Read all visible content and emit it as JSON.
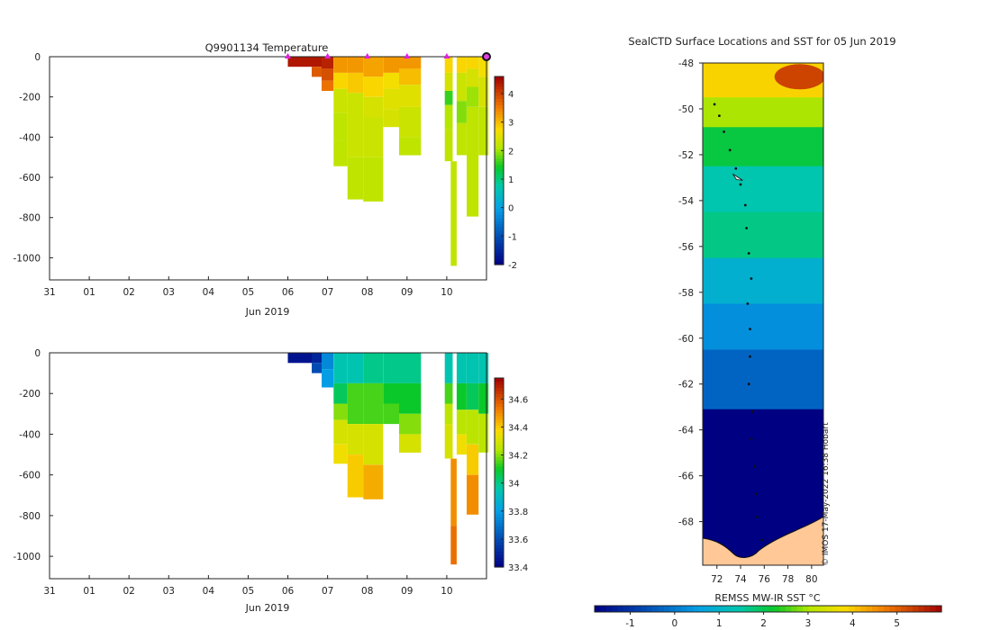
{
  "chart_data": [
    {
      "type": "heatmap",
      "title": "Q9901134  Temperature",
      "xlabel": "Jun 2019",
      "ylabel": "",
      "xticks": [
        "31",
        "01",
        "02",
        "03",
        "04",
        "05",
        "06",
        "07",
        "08",
        "09",
        "10"
      ],
      "yticks": [
        "0",
        "-200",
        "-400",
        "-600",
        "-800",
        "-1000"
      ],
      "ylim": [
        -1110,
        0
      ],
      "colorbar": {
        "min": -2,
        "max": 4.6,
        "ticks": [
          "-2",
          "-1",
          "0",
          "1",
          "2",
          "3",
          "4"
        ]
      },
      "profile_markers_day": [
        5,
        6,
        7,
        8,
        9,
        10
      ],
      "current_position_day": 10,
      "profiles": [
        {
          "x0": 5.0,
          "x1": 5.6,
          "bins": [
            [
              0,
              -50,
              4.4
            ]
          ]
        },
        {
          "x0": 5.6,
          "x1": 5.85,
          "bins": [
            [
              0,
              -50,
              4.4
            ],
            [
              -50,
              -100,
              3.8
            ]
          ]
        },
        {
          "x0": 5.85,
          "x1": 6.15,
          "bins": [
            [
              0,
              -60,
              4.3
            ],
            [
              -60,
              -120,
              3.9
            ],
            [
              -120,
              -170,
              3.6
            ]
          ]
        },
        {
          "x0": 6.15,
          "x1": 6.5,
          "bins": [
            [
              0,
              -80,
              3.3
            ],
            [
              -80,
              -160,
              2.8
            ],
            [
              -160,
              -280,
              2.3
            ],
            [
              -280,
              -420,
              2.2
            ],
            [
              -420,
              -545,
              2.2
            ]
          ]
        },
        {
          "x0": 6.5,
          "x1": 6.9,
          "bins": [
            [
              0,
              -80,
              3.3
            ],
            [
              -80,
              -180,
              2.9
            ],
            [
              -180,
              -300,
              2.3
            ],
            [
              -300,
              -500,
              2.3
            ],
            [
              -500,
              -710,
              2.2
            ]
          ]
        },
        {
          "x0": 6.9,
          "x1": 7.4,
          "bins": [
            [
              0,
              -100,
              3.2
            ],
            [
              -100,
              -200,
              2.8
            ],
            [
              -200,
              -300,
              2.4
            ],
            [
              -300,
              -500,
              2.3
            ],
            [
              -500,
              -720,
              2.2
            ]
          ]
        },
        {
          "x0": 7.4,
          "x1": 7.8,
          "bins": [
            [
              0,
              -80,
              3.3
            ],
            [
              -80,
              -160,
              2.7
            ],
            [
              -160,
              -260,
              2.5
            ],
            [
              -260,
              -350,
              2.4
            ]
          ]
        },
        {
          "x0": 7.8,
          "x1": 8.35,
          "bins": [
            [
              0,
              -60,
              3.3
            ],
            [
              -60,
              -140,
              3.0
            ],
            [
              -140,
              -250,
              2.5
            ],
            [
              -250,
              -400,
              2.3
            ],
            [
              -400,
              -490,
              2.2
            ]
          ]
        },
        {
          "x0": 8.95,
          "x1": 9.15,
          "bins": [
            [
              0,
              -80,
              2.8
            ],
            [
              -80,
              -170,
              2.4
            ],
            [
              -170,
              -240,
              1.6
            ],
            [
              -240,
              -360,
              2.1
            ],
            [
              -360,
              -520,
              2.2
            ]
          ]
        },
        {
          "x0": 9.1,
          "x1": 9.25,
          "bins": [
            [
              -520,
              -1040,
              2.2
            ]
          ]
        },
        {
          "x0": 9.25,
          "x1": 9.5,
          "bins": [
            [
              0,
              -80,
              2.8
            ],
            [
              -80,
              -220,
              2.3
            ],
            [
              -220,
              -330,
              1.9
            ],
            [
              -330,
              -490,
              2.2
            ]
          ]
        },
        {
          "x0": 9.5,
          "x1": 9.8,
          "bins": [
            [
              0,
              -60,
              2.8
            ],
            [
              -60,
              -150,
              2.4
            ],
            [
              -150,
              -250,
              2.0
            ],
            [
              -250,
              -490,
              2.2
            ],
            [
              -490,
              -795,
              2.2
            ]
          ]
        },
        {
          "x0": 9.8,
          "x1": 10.05,
          "bins": [
            [
              0,
              -100,
              2.7
            ],
            [
              -100,
              -250,
              2.4
            ],
            [
              -250,
              -490,
              2.2
            ]
          ]
        }
      ]
    },
    {
      "type": "heatmap",
      "title": "",
      "xlabel": "Jun 2019",
      "ylabel": "",
      "xticks": [
        "31",
        "01",
        "02",
        "03",
        "04",
        "05",
        "06",
        "07",
        "08",
        "09",
        "10"
      ],
      "yticks": [
        "0",
        "-200",
        "-400",
        "-600",
        "-800",
        "-1000"
      ],
      "ylim": [
        -1110,
        0
      ],
      "colorbar": {
        "min": 33.4,
        "max": 34.75,
        "ticks": [
          "33.4",
          "33.6",
          "33.8",
          "34",
          "34.2",
          "34.4",
          "34.6"
        ]
      },
      "profiles": [
        {
          "x0": 5.0,
          "x1": 5.6,
          "bins": [
            [
              0,
              -50,
              33.45
            ]
          ]
        },
        {
          "x0": 5.6,
          "x1": 5.85,
          "bins": [
            [
              0,
              -50,
              33.5
            ],
            [
              -50,
              -100,
              33.6
            ]
          ]
        },
        {
          "x0": 5.85,
          "x1": 6.15,
          "bins": [
            [
              0,
              -80,
              33.75
            ],
            [
              -80,
              -170,
              33.8
            ]
          ]
        },
        {
          "x0": 6.15,
          "x1": 6.5,
          "bins": [
            [
              0,
              -150,
              33.95
            ],
            [
              -150,
              -250,
              34.05
            ],
            [
              -250,
              -330,
              34.2
            ],
            [
              -330,
              -450,
              34.3
            ],
            [
              -450,
              -545,
              34.35
            ]
          ]
        },
        {
          "x0": 6.5,
          "x1": 6.9,
          "bins": [
            [
              0,
              -150,
              33.95
            ],
            [
              -150,
              -350,
              34.15
            ],
            [
              -350,
              -500,
              34.3
            ],
            [
              -500,
              -710,
              34.4
            ]
          ]
        },
        {
          "x0": 6.9,
          "x1": 7.4,
          "bins": [
            [
              0,
              -150,
              34.0
            ],
            [
              -150,
              -350,
              34.15
            ],
            [
              -350,
              -550,
              34.3
            ],
            [
              -550,
              -720,
              34.45
            ]
          ]
        },
        {
          "x0": 7.4,
          "x1": 7.8,
          "bins": [
            [
              0,
              -150,
              34.0
            ],
            [
              -150,
              -250,
              34.1
            ],
            [
              -250,
              -350,
              34.15
            ]
          ]
        },
        {
          "x0": 7.8,
          "x1": 8.35,
          "bins": [
            [
              0,
              -150,
              34.0
            ],
            [
              -150,
              -300,
              34.1
            ],
            [
              -300,
              -400,
              34.2
            ],
            [
              -400,
              -490,
              34.3
            ]
          ]
        },
        {
          "x0": 8.95,
          "x1": 9.15,
          "bins": [
            [
              0,
              -150,
              33.95
            ],
            [
              -150,
              -250,
              34.15
            ],
            [
              -250,
              -350,
              34.25
            ],
            [
              -350,
              -520,
              34.3
            ]
          ]
        },
        {
          "x0": 9.1,
          "x1": 9.25,
          "bins": [
            [
              -520,
              -850,
              34.5
            ],
            [
              -850,
              -1040,
              34.55
            ]
          ]
        },
        {
          "x0": 9.25,
          "x1": 9.5,
          "bins": [
            [
              0,
              -150,
              33.95
            ],
            [
              -150,
              -280,
              34.1
            ],
            [
              -280,
              -400,
              34.25
            ],
            [
              -400,
              -500,
              34.35
            ]
          ]
        },
        {
          "x0": 9.5,
          "x1": 9.8,
          "bins": [
            [
              0,
              -150,
              33.95
            ],
            [
              -150,
              -280,
              34.05
            ],
            [
              -280,
              -450,
              34.25
            ],
            [
              -450,
              -600,
              34.4
            ],
            [
              -600,
              -795,
              34.5
            ]
          ]
        },
        {
          "x0": 9.8,
          "x1": 10.05,
          "bins": [
            [
              0,
              -150,
              33.95
            ],
            [
              -150,
              -300,
              34.1
            ],
            [
              -300,
              -490,
              34.25
            ]
          ]
        }
      ]
    },
    {
      "type": "heatmap",
      "title": "SealCTD Surface Locations and SST for 05 Jun 2019",
      "xlabel": "",
      "ylabel": "",
      "xticks": [
        "72",
        "74",
        "76",
        "78",
        "80"
      ],
      "yticks": [
        "-48",
        "-50",
        "-52",
        "-54",
        "-56",
        "-58",
        "-60",
        "-62",
        "-64",
        "-66",
        "-68"
      ],
      "xlim": [
        70.8,
        81.0
      ],
      "ylim": [
        -69.9,
        -48.0
      ],
      "colorbar": {
        "label": "REMSS MW-IR SST °C",
        "min": -1.8,
        "max": 6.0,
        "ticks": [
          "-1",
          "0",
          "1",
          "2",
          "3",
          "4",
          "5"
        ]
      },
      "sst_zones": [
        {
          "lat_top": -48.0,
          "lat_bottom": -49.5,
          "sst": 3.9
        },
        {
          "lat_top": -49.5,
          "lat_bottom": -50.8,
          "sst": 3.0
        },
        {
          "lat_top": -50.8,
          "lat_bottom": -52.5,
          "sst": 2.1
        },
        {
          "lat_top": -52.5,
          "lat_bottom": -54.5,
          "sst": 1.4
        },
        {
          "lat_top": -54.5,
          "lat_bottom": -56.5,
          "sst": 1.7
        },
        {
          "lat_top": -56.5,
          "lat_bottom": -58.5,
          "sst": 0.9
        },
        {
          "lat_top": -58.5,
          "lat_bottom": -60.5,
          "sst": 0.3
        },
        {
          "lat_top": -60.5,
          "lat_bottom": -63.1,
          "sst": -0.3
        },
        {
          "lat_top": -63.1,
          "lat_bottom": -69.9,
          "sst": -1.8
        }
      ],
      "track_lonlat": [
        [
          71.8,
          -49.8
        ],
        [
          72.2,
          -50.3
        ],
        [
          72.6,
          -51.0
        ],
        [
          73.1,
          -51.8
        ],
        [
          73.6,
          -52.6
        ],
        [
          74.0,
          -53.3
        ],
        [
          74.4,
          -54.2
        ],
        [
          74.5,
          -55.2
        ],
        [
          74.7,
          -56.3
        ],
        [
          74.9,
          -57.4
        ],
        [
          74.6,
          -58.5
        ],
        [
          74.8,
          -59.6
        ],
        [
          74.8,
          -60.8
        ],
        [
          74.7,
          -62.0
        ],
        [
          75.0,
          -63.2
        ],
        [
          74.9,
          -64.4
        ],
        [
          75.2,
          -65.6
        ],
        [
          75.3,
          -66.8
        ],
        [
          75.4,
          -67.8
        ],
        [
          75.8,
          -68.8
        ]
      ],
      "seal_marker_lonlat": [
        73.8,
        -53.0
      ],
      "land_label": "© IMOS 17-May-2022 16:38 Hobart"
    }
  ]
}
